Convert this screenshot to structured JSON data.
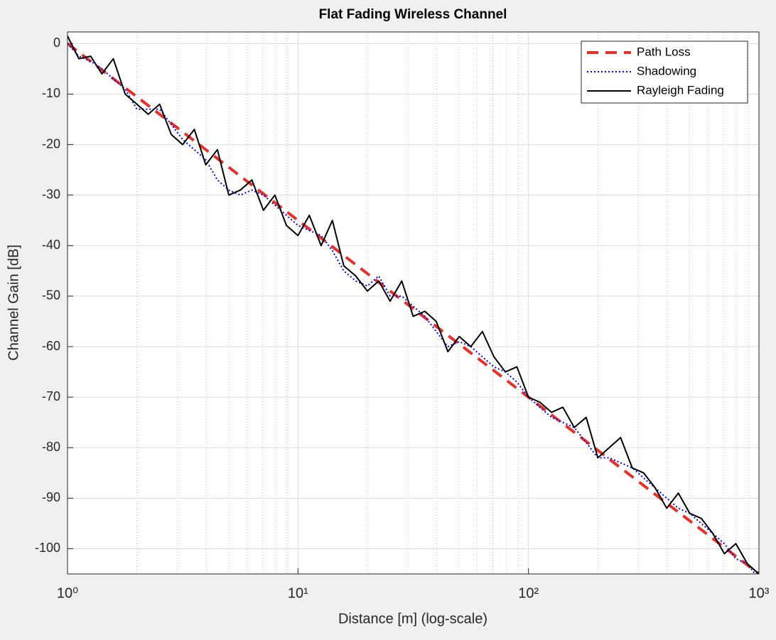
{
  "chart_data": {
    "type": "line",
    "title": "Flat Fading Wireless Channel",
    "xlabel": "Distance [m] (log-scale)",
    "ylabel": "Channel Gain [dB]",
    "xscale": "log",
    "xlim": [
      1,
      1000
    ],
    "ylim": [
      -105,
      2.3
    ],
    "xticks": [
      {
        "value": 1,
        "label": "10⁰"
      },
      {
        "value": 10,
        "label": "10¹"
      },
      {
        "value": 100,
        "label": "10²"
      },
      {
        "value": 1000,
        "label": "10³"
      }
    ],
    "yticks": [
      0,
      -10,
      -20,
      -30,
      -40,
      -50,
      -60,
      -70,
      -80,
      -90,
      -100
    ],
    "grid": true,
    "minor_grid": true,
    "legend": "northeast",
    "x": [
      1,
      1.12,
      1.26,
      1.41,
      1.58,
      1.78,
      2,
      2.24,
      2.51,
      2.82,
      3.16,
      3.55,
      3.98,
      4.47,
      5.01,
      5.62,
      6.31,
      7.08,
      7.94,
      8.91,
      10,
      11.2,
      12.6,
      14.1,
      15.8,
      17.8,
      20,
      22.4,
      25.1,
      28.2,
      31.6,
      35.5,
      39.8,
      44.7,
      50.1,
      56.2,
      63.1,
      70.8,
      79.4,
      89.1,
      100,
      112,
      126,
      141,
      158,
      178,
      200,
      224,
      251,
      282,
      316,
      355,
      398,
      447,
      501,
      562,
      631,
      708,
      794,
      891,
      1000
    ],
    "series": [
      {
        "name": "Path Loss",
        "color": "#e8302a",
        "style": "dashed",
        "x": [
          1,
          1000
        ],
        "values": [
          0,
          -105
        ]
      },
      {
        "name": "Shadowing",
        "color": "#0000ff",
        "style": "dotted",
        "values": [
          0,
          -2.5,
          -3.5,
          -5,
          -7,
          -9,
          -13,
          -13,
          -13,
          -16,
          -19,
          -21,
          -23,
          -27,
          -29,
          -30,
          -29,
          -30,
          -32,
          -34,
          -36,
          -37,
          -38,
          -41,
          -45,
          -47,
          -48,
          -46,
          -50,
          -50,
          -52,
          -54,
          -57,
          -60,
          -59,
          -60,
          -62,
          -64,
          -65,
          -67,
          -70,
          -72,
          -74,
          -75,
          -76,
          -79,
          -82,
          -82,
          -83,
          -84,
          -86,
          -88,
          -90,
          -92,
          -93,
          -95,
          -97,
          -99,
          -102,
          -103,
          -106
        ]
      },
      {
        "name": "Rayleigh Fading",
        "color": "#000000",
        "style": "solid",
        "values": [
          1.5,
          -3,
          -2.5,
          -6,
          -3,
          -10,
          -12,
          -14,
          -12,
          -18,
          -20,
          -17,
          -24,
          -21,
          -30,
          -29,
          -27,
          -33,
          -30,
          -36,
          -38,
          -34,
          -40,
          -35,
          -44,
          -46,
          -49,
          -47,
          -51,
          -47,
          -54,
          -53,
          -55,
          -61,
          -58,
          -60,
          -57,
          -62,
          -65,
          -64,
          -70,
          -71,
          -73,
          -72,
          -76,
          -74,
          -82,
          -80,
          -78,
          -84,
          -85,
          -88,
          -92,
          -89,
          -93,
          -94,
          -97,
          -101,
          -99,
          -103,
          -105
        ]
      }
    ]
  }
}
